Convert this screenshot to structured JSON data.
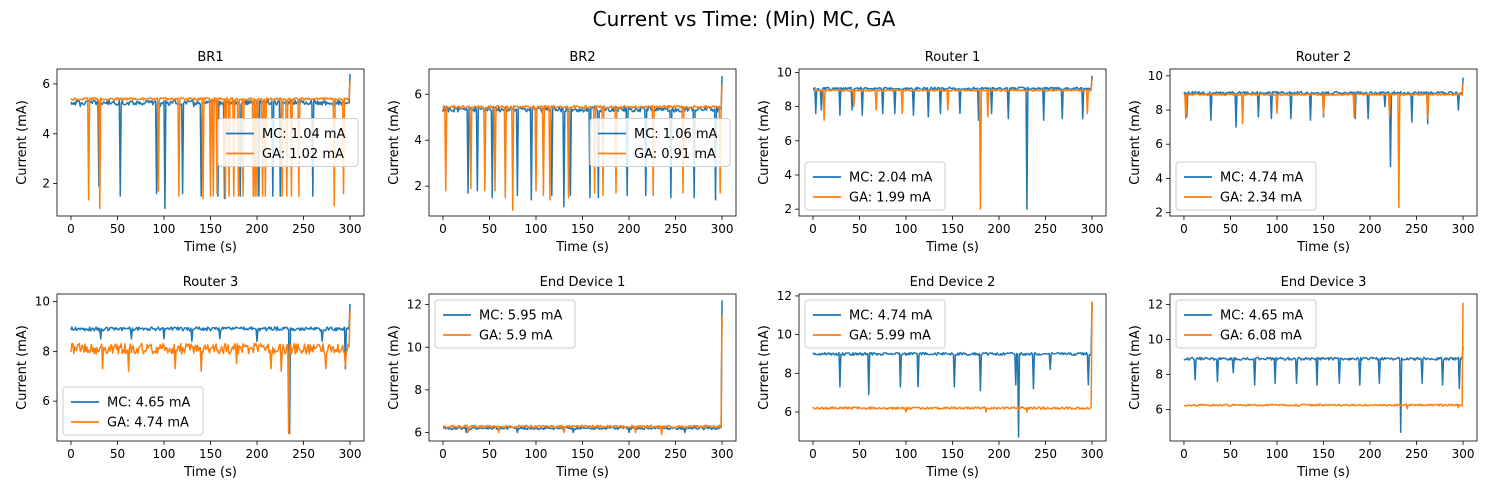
{
  "figure": {
    "title": "Current vs Time: (Min) MC, GA",
    "colors": {
      "MC": "#1f77b4",
      "GA": "#ff7f0e"
    }
  },
  "chart_data": [
    {
      "type": "line",
      "title": "BR1",
      "xlabel": "Time (s)",
      "ylabel": "Current (mA)",
      "xlim": [
        -15,
        315
      ],
      "ylim": [
        0.7,
        6.6
      ],
      "xticks": [
        0,
        50,
        100,
        150,
        200,
        250,
        300
      ],
      "yticks": [
        2,
        4,
        6
      ],
      "legend_position": "center-right",
      "series": [
        {
          "name": "MC: 1.04 mA",
          "baseline": 5.25,
          "noise": 0.1,
          "spikes": [
            [
              10,
              5.1
            ],
            [
              30,
              1.9
            ],
            [
              53,
              1.5
            ],
            [
              92,
              1.6
            ],
            [
              96,
              5.1
            ],
            [
              101,
              1.0
            ],
            [
              120,
              1.6
            ],
            [
              132,
              5.1
            ],
            [
              140,
              1.5
            ],
            [
              158,
              1.5
            ],
            [
              165,
              1.4
            ],
            [
              182,
              1.5
            ],
            [
              202,
              1.5
            ],
            [
              217,
              1.5
            ],
            [
              225,
              1.5
            ],
            [
              260,
              1.5
            ],
            [
              282,
              5.1
            ]
          ],
          "end": 6.4
        },
        {
          "name": "GA: 1.02 mA",
          "baseline": 5.4,
          "noise": 0.05,
          "spikes": [
            [
              19,
              1.35
            ],
            [
              31,
              1.0
            ],
            [
              94,
              1.7
            ],
            [
              116,
              1.5
            ],
            [
              142,
              1.4
            ],
            [
              150,
              1.5
            ],
            [
              153,
              1.5
            ],
            [
              157,
              1.6
            ],
            [
              166,
              1.4
            ],
            [
              170,
              1.5
            ],
            [
              175,
              1.5
            ],
            [
              180,
              1.5
            ],
            [
              185,
              1.5
            ],
            [
              196,
              1.5
            ],
            [
              198,
              1.5
            ],
            [
              200,
              1.5
            ],
            [
              206,
              1.5
            ],
            [
              209,
              1.5
            ],
            [
              227,
              1.5
            ],
            [
              232,
              1.5
            ],
            [
              237,
              1.5
            ],
            [
              245,
              1.5
            ],
            [
              283,
              1.1
            ],
            [
              293,
              1.6
            ]
          ],
          "end": 6.1
        }
      ]
    },
    {
      "type": "line",
      "title": "BR2",
      "xlabel": "Time (s)",
      "ylabel": "Current (mA)",
      "xlim": [
        -15,
        315
      ],
      "ylim": [
        0.7,
        7.1
      ],
      "xticks": [
        0,
        50,
        100,
        150,
        200,
        250,
        300
      ],
      "yticks": [
        2,
        4,
        6
      ],
      "legend_position": "center-right",
      "series": [
        {
          "name": "MC: 1.06 mA",
          "baseline": 5.35,
          "noise": 0.12,
          "spikes": [
            [
              27,
              1.7
            ],
            [
              37,
              1.8
            ],
            [
              53,
              1.5
            ],
            [
              80,
              1.6
            ],
            [
              95,
              1.4
            ],
            [
              117,
              1.6
            ],
            [
              130,
              1.1
            ],
            [
              137,
              1.6
            ],
            [
              158,
              1.5
            ],
            [
              167,
              1.5
            ],
            [
              198,
              1.6
            ],
            [
              218,
              1.6
            ],
            [
              245,
              1.5
            ],
            [
              270,
              1.5
            ],
            [
              293,
              1.4
            ]
          ],
          "end": 6.8
        },
        {
          "name": "GA: 0.91 mA",
          "baseline": 5.45,
          "noise": 0.06,
          "spikes": [
            [
              3,
              1.8
            ],
            [
              30,
              1.9
            ],
            [
              45,
              1.8
            ],
            [
              56,
              1.8
            ],
            [
              67,
              1.5
            ],
            [
              75,
              0.95
            ],
            [
              100,
              1.8
            ],
            [
              108,
              1.6
            ],
            [
              115,
              1.4
            ],
            [
              135,
              1.5
            ],
            [
              163,
              1.7
            ],
            [
              172,
              1.6
            ],
            [
              186,
              1.7
            ],
            [
              226,
              1.6
            ],
            [
              258,
              1.7
            ],
            [
              298,
              1.7
            ]
          ],
          "end": 6.4
        }
      ]
    },
    {
      "type": "line",
      "title": "Router 1",
      "xlabel": "Time (s)",
      "ylabel": "Current (mA)",
      "xlim": [
        -15,
        315
      ],
      "ylim": [
        1.6,
        10.2
      ],
      "xticks": [
        0,
        50,
        100,
        150,
        200,
        250,
        300
      ],
      "yticks": [
        2,
        4,
        6,
        8,
        10
      ],
      "legend_position": "lower-left",
      "series": [
        {
          "name": "MC: 2.04 mA",
          "baseline": 9.05,
          "noise": 0.08,
          "spikes": [
            [
              3,
              7.6
            ],
            [
              9,
              7.8
            ],
            [
              29,
              7.5
            ],
            [
              42,
              7.8
            ],
            [
              53,
              7.5
            ],
            [
              75,
              7.6
            ],
            [
              88,
              7.6
            ],
            [
              108,
              7.5
            ],
            [
              124,
              7.4
            ],
            [
              137,
              7.6
            ],
            [
              158,
              7.6
            ],
            [
              178,
              7.2
            ],
            [
              192,
              7.6
            ],
            [
              210,
              7.3
            ],
            [
              230,
              2.0
            ],
            [
              248,
              7.2
            ],
            [
              268,
              7.3
            ],
            [
              290,
              7.3
            ]
          ],
          "end": 9.8
        },
        {
          "name": "GA: 1.99 mA",
          "baseline": 8.95,
          "noise": 0.05,
          "spikes": [
            [
              12,
              7.2
            ],
            [
              44,
              8.0
            ],
            [
              68,
              7.8
            ],
            [
              96,
              7.6
            ],
            [
              145,
              7.8
            ],
            [
              180,
              2.0
            ],
            [
              188,
              7.4
            ],
            [
              295,
              7.6
            ]
          ],
          "end": 9.6
        }
      ]
    },
    {
      "type": "line",
      "title": "Router 2",
      "xlabel": "Time (s)",
      "ylabel": "Current (mA)",
      "xlim": [
        -15,
        315
      ],
      "ylim": [
        1.8,
        10.4
      ],
      "xticks": [
        0,
        50,
        100,
        150,
        200,
        250,
        300
      ],
      "yticks": [
        2,
        4,
        6,
        8,
        10
      ],
      "legend_position": "lower-left",
      "series": [
        {
          "name": "MC: 4.74 mA",
          "baseline": 9.0,
          "noise": 0.08,
          "spikes": [
            [
              3,
              7.6
            ],
            [
              29,
              7.4
            ],
            [
              56,
              7.0
            ],
            [
              80,
              7.6
            ],
            [
              94,
              7.5
            ],
            [
              115,
              7.5
            ],
            [
              136,
              7.4
            ],
            [
              150,
              7.6
            ],
            [
              184,
              7.5
            ],
            [
              198,
              7.5
            ],
            [
              216,
              8.2
            ],
            [
              222,
              4.7
            ],
            [
              245,
              7.3
            ],
            [
              262,
              7.2
            ],
            [
              295,
              8.0
            ]
          ],
          "end": 9.9
        },
        {
          "name": "GA: 2.34 mA",
          "baseline": 8.9,
          "noise": 0.05,
          "spikes": [
            [
              2,
              7.5
            ],
            [
              63,
              7.2
            ],
            [
              100,
              7.8
            ],
            [
              150,
              7.7
            ],
            [
              183,
              7.6
            ],
            [
              221,
              7.6
            ],
            [
              231,
              2.3
            ],
            [
              262,
              7.5
            ]
          ],
          "end": 9.6
        }
      ]
    },
    {
      "type": "line",
      "title": "Router 3",
      "xlabel": "Time (s)",
      "ylabel": "Current (mA)",
      "xlim": [
        -15,
        315
      ],
      "ylim": [
        4.4,
        10.3
      ],
      "xticks": [
        0,
        50,
        100,
        150,
        200,
        250,
        300
      ],
      "yticks": [
        6,
        8,
        10
      ],
      "legend_position": "lower-left",
      "series": [
        {
          "name": "MC: 4.65 mA",
          "baseline": 8.9,
          "noise": 0.08,
          "spikes": [
            [
              32,
              8.5
            ],
            [
              65,
              8.5
            ],
            [
              100,
              8.5
            ],
            [
              130,
              8.4
            ],
            [
              160,
              8.5
            ],
            [
              200,
              8.4
            ],
            [
              235,
              4.7
            ],
            [
              270,
              8.4
            ],
            [
              295,
              7.3
            ]
          ],
          "end": 9.9
        },
        {
          "name": "GA: 4.74 mA",
          "baseline": 8.1,
          "noise": 0.22,
          "spikes": [
            [
              34,
              7.3
            ],
            [
              62,
              7.2
            ],
            [
              112,
              7.3
            ],
            [
              140,
              7.2
            ],
            [
              178,
              7.5
            ],
            [
              215,
              7.3
            ],
            [
              226,
              7.2
            ],
            [
              234,
              4.7
            ],
            [
              274,
              7.3
            ],
            [
              295,
              7.4
            ]
          ],
          "end": 9.6
        }
      ]
    },
    {
      "type": "line",
      "title": "End Device 1",
      "xlabel": "Time (s)",
      "ylabel": "Current (mA)",
      "xlim": [
        -15,
        315
      ],
      "ylim": [
        5.6,
        12.5
      ],
      "xticks": [
        0,
        50,
        100,
        150,
        200,
        250,
        300
      ],
      "yticks": [
        6,
        8,
        10,
        12
      ],
      "legend_position": "top-left",
      "series": [
        {
          "name": "MC: 5.95 mA",
          "baseline": 6.2,
          "noise": 0.06,
          "spikes": [
            [
              25,
              6.0
            ],
            [
              80,
              6.0
            ],
            [
              140,
              6.0
            ],
            [
              200,
              6.0
            ],
            [
              260,
              6.0
            ]
          ],
          "end": 12.2
        },
        {
          "name": "GA: 5.9 mA",
          "baseline": 6.28,
          "noise": 0.06,
          "spikes": [
            [
              27,
              6.0
            ],
            [
              60,
              6.0
            ],
            [
              130,
              6.0
            ],
            [
              207,
              6.0
            ],
            [
              235,
              5.9
            ]
          ],
          "end": 11.5
        }
      ]
    },
    {
      "type": "line",
      "title": "End Device 2",
      "xlabel": "Time (s)",
      "ylabel": "Current (mA)",
      "xlim": [
        -15,
        315
      ],
      "ylim": [
        4.5,
        12.1
      ],
      "xticks": [
        0,
        50,
        100,
        150,
        200,
        250,
        300
      ],
      "yticks": [
        6,
        8,
        10,
        12
      ],
      "legend_position": "top-left",
      "series": [
        {
          "name": "MC: 4.74 mA",
          "baseline": 9.0,
          "noise": 0.07,
          "spikes": [
            [
              29,
              7.3
            ],
            [
              60,
              6.9
            ],
            [
              94,
              7.3
            ],
            [
              113,
              7.3
            ],
            [
              152,
              7.3
            ],
            [
              180,
              7.1
            ],
            [
              218,
              7.4
            ],
            [
              221,
              4.7
            ],
            [
              237,
              7.2
            ],
            [
              255,
              8.2
            ],
            [
              296,
              7.4
            ]
          ],
          "end": 11.7
        },
        {
          "name": "GA: 5.99 mA",
          "baseline": 6.2,
          "noise": 0.06,
          "spikes": [
            [
              100,
              6.0
            ],
            [
              186,
              6.0
            ],
            [
              230,
              6.0
            ]
          ],
          "end": 11.7
        }
      ]
    },
    {
      "type": "line",
      "title": "End Device 3",
      "xlabel": "Time (s)",
      "ylabel": "Current (mA)",
      "xlim": [
        -15,
        315
      ],
      "ylim": [
        4.2,
        12.6
      ],
      "xticks": [
        0,
        50,
        100,
        150,
        200,
        250,
        300
      ],
      "yticks": [
        6,
        8,
        10,
        12
      ],
      "legend_position": "top-left",
      "series": [
        {
          "name": "MC: 4.65 mA",
          "baseline": 8.9,
          "noise": 0.08,
          "spikes": [
            [
              12,
              7.7
            ],
            [
              36,
              7.6
            ],
            [
              53,
              8.1
            ],
            [
              76,
              7.4
            ],
            [
              98,
              7.5
            ],
            [
              121,
              7.5
            ],
            [
              143,
              7.4
            ],
            [
              167,
              7.5
            ],
            [
              189,
              7.4
            ],
            [
              210,
              7.5
            ],
            [
              233,
              4.7
            ],
            [
              256,
              7.5
            ],
            [
              278,
              7.4
            ],
            [
              296,
              7.2
            ]
          ],
          "end": 9.6
        },
        {
          "name": "GA: 6.08 mA",
          "baseline": 6.25,
          "noise": 0.05,
          "spikes": [
            [
              240,
              6.05
            ],
            [
              295,
              6.1
            ]
          ],
          "end": 12.1
        }
      ]
    }
  ]
}
